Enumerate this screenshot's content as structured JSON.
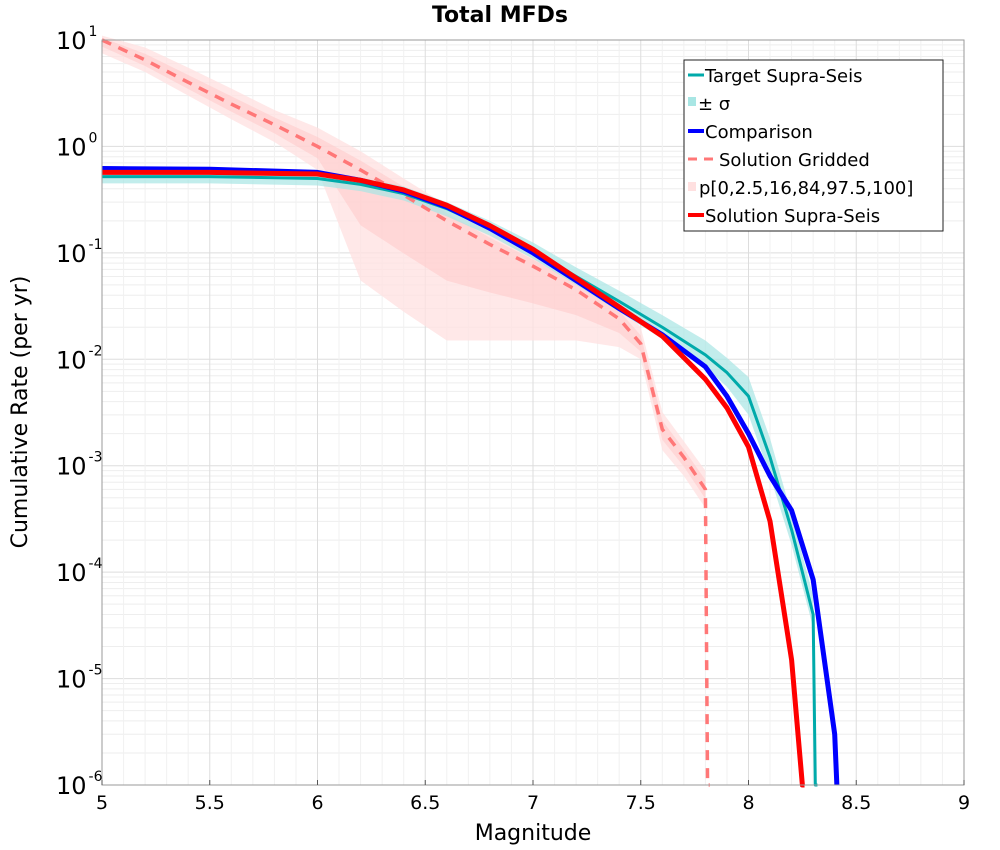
{
  "chart_data": {
    "type": "line",
    "title": "Total MFDs",
    "xlabel": "Magnitude",
    "ylabel": "Cumulative Rate (per yr)",
    "xlim": [
      5,
      9
    ],
    "ylim": [
      1e-06,
      10
    ],
    "y_scale": "log",
    "grid": true,
    "legend_position": "top-right",
    "x_ticks": [
      "5",
      "5.5",
      "6",
      "6.5",
      "7",
      "7.5",
      "8",
      "8.5",
      "9"
    ],
    "y_ticks": [
      {
        "base": "10",
        "exp": "-6"
      },
      {
        "base": "10",
        "exp": "-5"
      },
      {
        "base": "10",
        "exp": "-4"
      },
      {
        "base": "10",
        "exp": "-3"
      },
      {
        "base": "10",
        "exp": "-2"
      },
      {
        "base": "10",
        "exp": "-1"
      },
      {
        "base": "10",
        "exp": "0"
      },
      {
        "base": "10",
        "exp": "1"
      }
    ],
    "legend": [
      "Target Supra-Seis",
      "± σ",
      "Comparison",
      "Solution Gridded",
      "p[0,2.5,16,84,97.5,100]",
      "Solution Supra-Seis"
    ],
    "series": [
      {
        "name": "Target Supra-Seis",
        "color": "#00aaaa",
        "style": "solid",
        "x": [
          5.0,
          5.5,
          6.0,
          6.2,
          6.4,
          6.6,
          6.8,
          7.0,
          7.2,
          7.4,
          7.6,
          7.8,
          7.9,
          8.0,
          8.1,
          8.2,
          8.3,
          8.31,
          8.32
        ],
        "y": [
          0.52,
          0.52,
          0.5,
          0.44,
          0.36,
          0.26,
          0.17,
          0.105,
          0.06,
          0.035,
          0.02,
          0.011,
          0.0075,
          0.0045,
          0.0012,
          0.00025,
          4e-05,
          1e-06,
          1e-06
        ]
      },
      {
        "name": "± σ",
        "color": "#a8e6e4",
        "style": "band",
        "x": [
          5.0,
          5.5,
          6.0,
          6.2,
          6.4,
          6.6,
          6.8,
          7.0,
          7.2,
          7.4,
          7.6,
          7.8,
          7.9,
          8.0,
          8.1,
          8.2,
          8.3
        ],
        "lower": [
          0.45,
          0.45,
          0.43,
          0.38,
          0.31,
          0.22,
          0.145,
          0.088,
          0.05,
          0.028,
          0.0155,
          0.0085,
          0.0055,
          0.003,
          0.0008,
          0.00018,
          3e-05
        ],
        "upper": [
          0.6,
          0.6,
          0.58,
          0.51,
          0.42,
          0.3,
          0.2,
          0.125,
          0.073,
          0.044,
          0.026,
          0.015,
          0.0103,
          0.0068,
          0.0018,
          0.00035,
          6e-05
        ]
      },
      {
        "name": "Comparison",
        "color": "#0000ff",
        "style": "solid",
        "x": [
          5.0,
          5.5,
          6.0,
          6.2,
          6.4,
          6.6,
          6.8,
          7.0,
          7.2,
          7.4,
          7.6,
          7.8,
          7.9,
          8.0,
          8.1,
          8.2,
          8.3,
          8.4,
          8.41
        ],
        "y": [
          0.62,
          0.61,
          0.57,
          0.48,
          0.38,
          0.27,
          0.17,
          0.1,
          0.055,
          0.03,
          0.017,
          0.0085,
          0.0045,
          0.002,
          0.0008,
          0.00038,
          8.5e-05,
          3e-06,
          1e-06
        ]
      },
      {
        "name": "Solution Gridded",
        "color": "#ff7777",
        "style": "dashed",
        "x": [
          5.0,
          5.2,
          5.4,
          5.6,
          5.8,
          6.0,
          6.2,
          6.4,
          6.6,
          6.8,
          7.0,
          7.2,
          7.4,
          7.5,
          7.6,
          7.7,
          7.8,
          7.81,
          7.82
        ],
        "y": [
          10,
          6.5,
          4.0,
          2.5,
          1.6,
          1.0,
          0.6,
          0.35,
          0.2,
          0.12,
          0.075,
          0.045,
          0.024,
          0.014,
          0.0022,
          0.0012,
          0.0006,
          1e-06,
          1e-06
        ]
      },
      {
        "name": "p[0,2.5,16,84,97.5,100]",
        "color": "#ffe0e0",
        "style": "band",
        "x": [
          5.0,
          5.2,
          5.4,
          5.6,
          5.8,
          6.0,
          6.2,
          6.4,
          6.6,
          6.8,
          7.0,
          7.2,
          7.4,
          7.5,
          7.6,
          7.7,
          7.8
        ],
        "lower": [
          7.5,
          5.0,
          3.0,
          1.8,
          1.1,
          0.6,
          0.055,
          0.028,
          0.015,
          0.015,
          0.015,
          0.015,
          0.013,
          0.01,
          0.0014,
          0.0008,
          0.0004
        ],
        "upper": [
          11,
          8.5,
          5.5,
          3.5,
          2.2,
          1.5,
          0.9,
          0.5,
          0.28,
          0.16,
          0.1,
          0.06,
          0.034,
          0.02,
          0.0032,
          0.0017,
          0.0009
        ]
      },
      {
        "name": "Solution Supra-Seis",
        "color": "#ff0000",
        "style": "solid",
        "x": [
          5.0,
          5.5,
          6.0,
          6.2,
          6.4,
          6.6,
          6.8,
          7.0,
          7.2,
          7.4,
          7.6,
          7.8,
          7.9,
          8.0,
          8.1,
          8.2,
          8.25,
          8.26
        ],
        "y": [
          0.57,
          0.57,
          0.55,
          0.48,
          0.39,
          0.28,
          0.18,
          0.108,
          0.058,
          0.031,
          0.0165,
          0.0065,
          0.0035,
          0.0015,
          0.0003,
          1.5e-05,
          1e-06,
          1e-06
        ]
      }
    ]
  }
}
